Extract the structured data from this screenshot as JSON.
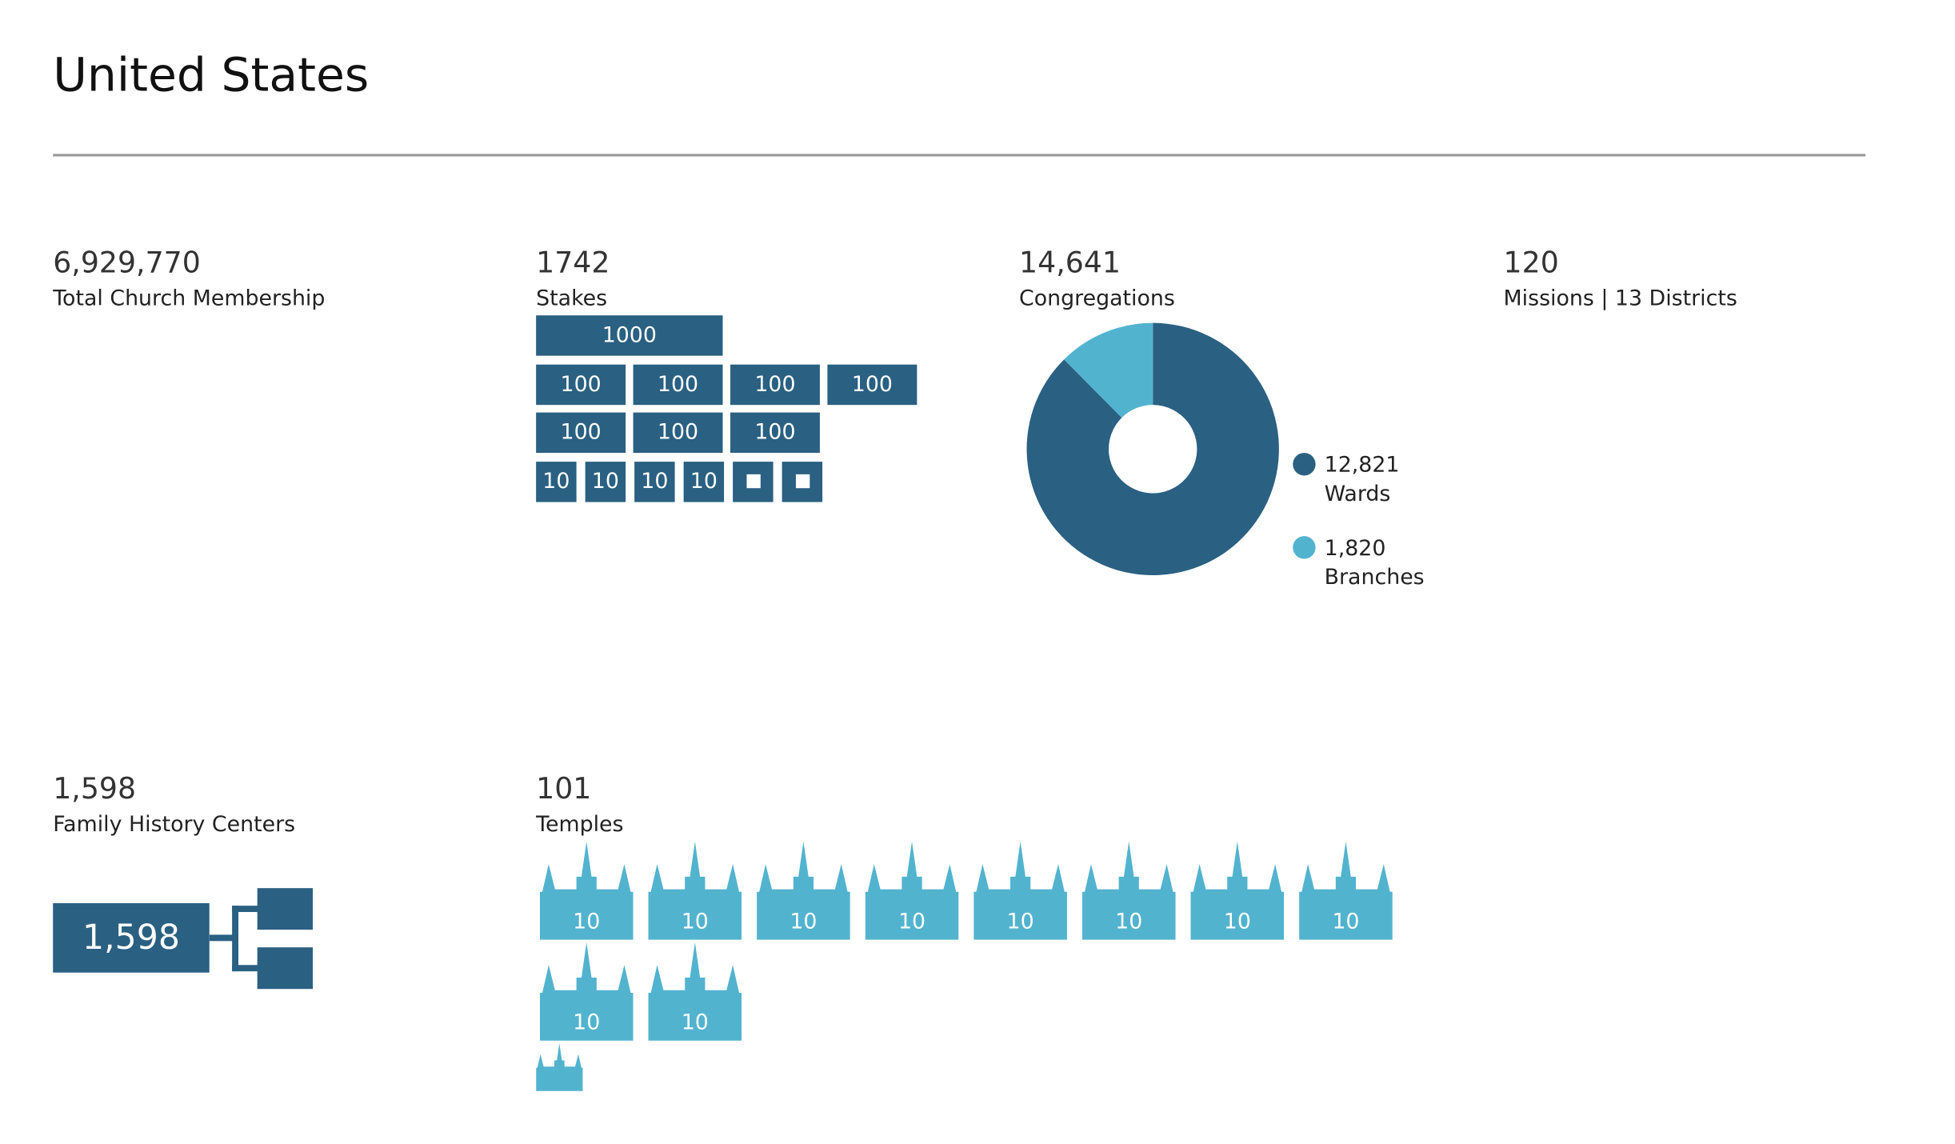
{
  "title": "United States",
  "colors": {
    "dark": "#2a6082",
    "light": "#52b3cf"
  },
  "membership": {
    "value": "6,929,770",
    "label": "Total Church Membership"
  },
  "stakes": {
    "value": "1742",
    "label": "Stakes",
    "blocks": [
      [
        "1000"
      ],
      [
        "100",
        "100",
        "100",
        "100"
      ],
      [
        "100",
        "100",
        "100"
      ],
      [
        "10",
        "10",
        "10",
        "10",
        "1",
        "1"
      ]
    ]
  },
  "congregations": {
    "value": "14,641",
    "label": "Congregations"
  },
  "missions": {
    "value": "120",
    "label": "Missions | 13 Districts"
  },
  "family_history": {
    "value": "1,598",
    "label": "Family History Centers",
    "box_label": "1,598"
  },
  "temples": {
    "value": "101",
    "label": "Temples",
    "icons": [
      "10",
      "10",
      "10",
      "10",
      "10",
      "10",
      "10",
      "10",
      "10",
      "10"
    ],
    "remainder": 1
  },
  "chart_data": {
    "type": "pie",
    "title": "Congregations",
    "total": 14641,
    "slices": [
      {
        "name": "Wards",
        "value": 12821,
        "display": "12,821",
        "color": "#2a6082"
      },
      {
        "name": "Branches",
        "value": 1820,
        "display": "1,820",
        "color": "#52b3cf"
      }
    ],
    "legend": "right"
  }
}
